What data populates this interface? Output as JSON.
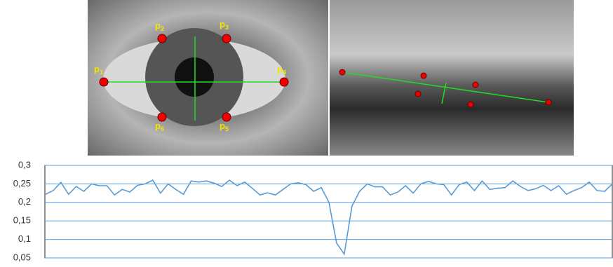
{
  "figure": {
    "eye_labels": [
      {
        "base": "p",
        "sub": "1"
      },
      {
        "base": "p",
        "sub": "2"
      },
      {
        "base": "p",
        "sub": "3"
      },
      {
        "base": "p",
        "sub": "4"
      },
      {
        "base": "p",
        "sub": "5"
      },
      {
        "base": "p",
        "sub": "6"
      }
    ]
  },
  "chart_data": {
    "type": "line",
    "color": "#5b9bd5",
    "grid": true,
    "ylim": [
      0.05,
      0.3
    ],
    "yticks": [
      {
        "value": 0.05,
        "label": "0,05"
      },
      {
        "value": 0.1,
        "label": "0,1"
      },
      {
        "value": 0.15,
        "label": "0,15"
      },
      {
        "value": 0.2,
        "label": "0,2"
      },
      {
        "value": 0.25,
        "label": "0,25"
      },
      {
        "value": 0.3,
        "label": "0,3"
      }
    ],
    "categories": [
      null,
      null,
      null,
      null,
      null,
      null,
      null,
      null,
      null,
      null,
      null,
      null,
      null,
      null,
      null,
      null,
      null,
      null,
      null,
      null,
      null,
      null,
      null,
      null,
      null,
      null,
      null,
      null,
      null,
      null,
      null,
      null,
      null,
      null,
      null,
      null,
      null,
      null,
      null,
      null,
      null,
      null,
      null,
      null,
      null,
      null,
      null,
      null,
      null,
      null,
      null,
      null,
      null,
      null,
      null,
      null,
      null,
      null,
      null,
      null,
      null,
      null,
      null,
      null,
      null,
      null,
      null,
      null,
      null,
      null,
      null,
      null,
      null,
      null,
      null
    ],
    "values": [
      0.222,
      0.232,
      0.254,
      0.222,
      0.243,
      0.23,
      0.25,
      0.245,
      0.245,
      0.22,
      0.235,
      0.228,
      0.246,
      0.25,
      0.26,
      0.225,
      0.25,
      0.235,
      0.222,
      0.258,
      0.255,
      0.258,
      0.252,
      0.243,
      0.26,
      0.245,
      0.255,
      0.238,
      0.22,
      0.226,
      0.22,
      0.235,
      0.25,
      0.253,
      0.248,
      0.23,
      0.24,
      0.2,
      0.09,
      0.06,
      0.19,
      0.23,
      0.25,
      0.242,
      0.242,
      0.22,
      0.228,
      0.245,
      0.225,
      0.25,
      0.257,
      0.25,
      0.248,
      0.22,
      0.248,
      0.255,
      0.232,
      0.258,
      0.235,
      0.238,
      0.24,
      0.258,
      0.243,
      0.232,
      0.237,
      0.246,
      0.232,
      0.245,
      0.222,
      0.232,
      0.24,
      0.255,
      0.232,
      0.23,
      0.25
    ]
  }
}
